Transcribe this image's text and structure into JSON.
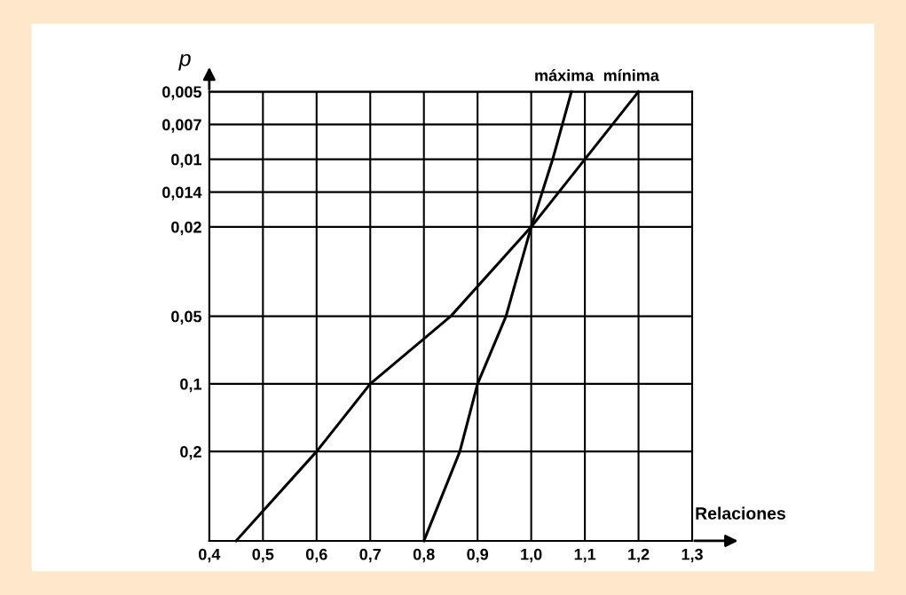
{
  "chart_data": {
    "type": "line",
    "xlabel": "Relaciones",
    "ylabel": "p",
    "log": "y",
    "grid": true,
    "legend": false,
    "marker": "none",
    "line_style": "solid",
    "xlim": [
      0.4,
      1.3
    ],
    "ylim": [
      0.5,
      0.005
    ],
    "xticks": [
      {
        "value": 0.4,
        "label": "0,4"
      },
      {
        "value": 0.5,
        "label": "0,5"
      },
      {
        "value": 0.6,
        "label": "0,6"
      },
      {
        "value": 0.7,
        "label": "0,7"
      },
      {
        "value": 0.8,
        "label": "0,8"
      },
      {
        "value": 0.9,
        "label": "0,9"
      },
      {
        "value": 1.0,
        "label": "1,0"
      },
      {
        "value": 1.1,
        "label": "1,1"
      },
      {
        "value": 1.2,
        "label": "1,2"
      },
      {
        "value": 1.3,
        "label": "1,3"
      }
    ],
    "yticks": [
      {
        "value": 0.005,
        "label": "0,005"
      },
      {
        "value": 0.007,
        "label": "0,007"
      },
      {
        "value": 0.01,
        "label": "0,01"
      },
      {
        "value": 0.014,
        "label": "0,014"
      },
      {
        "value": 0.02,
        "label": "0,02"
      },
      {
        "value": 0.05,
        "label": "0,05"
      },
      {
        "value": 0.1,
        "label": "0,1"
      },
      {
        "value": 0.2,
        "label": "0,2"
      }
    ],
    "series": [
      {
        "color": "#000000",
        "x": [
          0.8,
          0.867,
          0.9,
          0.953,
          1.0,
          1.04,
          1.075
        ],
        "values": [
          0.5,
          0.2,
          0.1,
          0.05,
          0.02,
          0.01,
          0.005
        ]
      },
      {
        "color": "#000000",
        "x": [
          0.45,
          0.6,
          0.7,
          0.85,
          1.0,
          1.1,
          1.2
        ],
        "values": [
          0.5,
          0.2,
          0.1,
          0.05,
          0.02,
          0.01,
          0.005
        ]
      }
    ],
    "annotations": [
      {
        "text": "máxima",
        "x": 1.075,
        "y": 0.005
      },
      {
        "text": "mínima",
        "x": 1.2,
        "y": 0.005
      }
    ]
  }
}
